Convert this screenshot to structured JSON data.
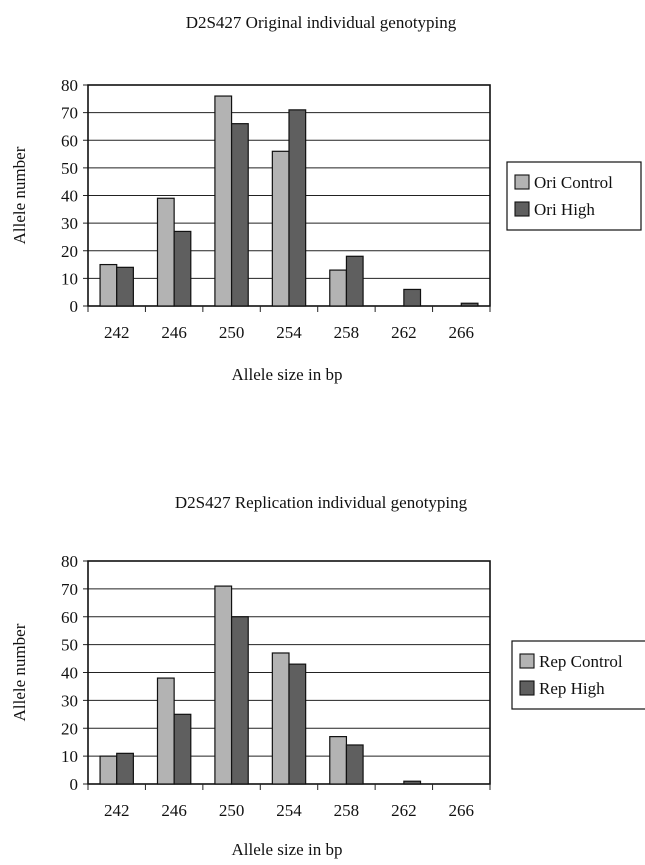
{
  "chart_data": [
    {
      "type": "bar",
      "title": "D2S427 Original individual genotyping",
      "xlabel": "Allele size in bp",
      "ylabel": "Allele number",
      "categories": [
        "242",
        "246",
        "250",
        "254",
        "258",
        "262",
        "266"
      ],
      "ylim": [
        0,
        80
      ],
      "yticks": [
        0,
        10,
        20,
        30,
        40,
        50,
        60,
        70,
        80
      ],
      "grid": true,
      "legend_position": "right",
      "series": [
        {
          "name": "Ori Control",
          "color": "#b3b3b3",
          "values": [
            15,
            39,
            76,
            56,
            13,
            0,
            0
          ]
        },
        {
          "name": "Ori High",
          "color": "#5f5f5f",
          "values": [
            14,
            27,
            66,
            71,
            18,
            6,
            1
          ]
        }
      ]
    },
    {
      "type": "bar",
      "title": "D2S427 Replication individual genotyping",
      "xlabel": "Allele size in bp",
      "ylabel": "Allele number",
      "categories": [
        "242",
        "246",
        "250",
        "254",
        "258",
        "262",
        "266"
      ],
      "ylim": [
        0,
        80
      ],
      "yticks": [
        0,
        10,
        20,
        30,
        40,
        50,
        60,
        70,
        80
      ],
      "grid": true,
      "legend_position": "right",
      "series": [
        {
          "name": "Rep Control",
          "color": "#b3b3b3",
          "values": [
            10,
            38,
            71,
            47,
            17,
            0,
            0
          ]
        },
        {
          "name": "Rep High",
          "color": "#5f5f5f",
          "values": [
            11,
            25,
            60,
            43,
            14,
            1,
            0
          ]
        }
      ]
    }
  ]
}
